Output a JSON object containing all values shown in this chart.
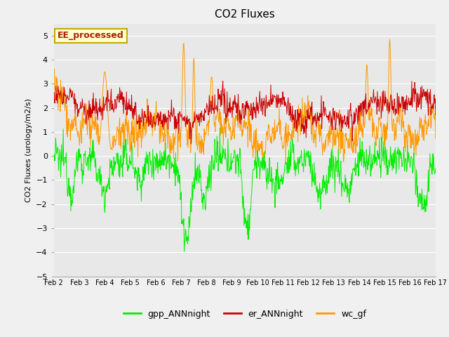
{
  "title": "CO2 Fluxes",
  "ylabel": "CO2 Fluxes (urology/m2/s)",
  "ylim": [
    -5.0,
    5.5
  ],
  "yticks": [
    -5.0,
    -4.0,
    -3.0,
    -2.0,
    -1.0,
    0.0,
    1.0,
    2.0,
    3.0,
    4.0,
    5.0
  ],
  "date_labels": [
    "Feb 2",
    "Feb 3",
    "Feb 4",
    "Feb 5",
    "Feb 6",
    "Feb 7",
    "Feb 8",
    "Feb 9",
    "Feb 10",
    "Feb 11",
    "Feb 12",
    "Feb 13",
    "Feb 14",
    "Feb 15",
    "Feb 16",
    "Feb 17"
  ],
  "watermark_text": "EE_processed",
  "legend_labels": [
    "gpp_ANNnight",
    "er_ANNnight",
    "wc_gf"
  ],
  "line_colors": [
    "#00ee00",
    "#cc0000",
    "#ff9900"
  ],
  "background_color": "#e8e8e8",
  "plot_bg_color": "#e8e8e8",
  "title_fontsize": 11,
  "axis_fontsize": 8,
  "legend_fontsize": 9,
  "n_points": 900
}
